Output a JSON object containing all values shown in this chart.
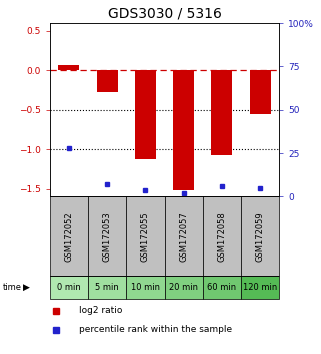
{
  "title": "GDS3030 / 5316",
  "samples": [
    "GSM172052",
    "GSM172053",
    "GSM172055",
    "GSM172057",
    "GSM172058",
    "GSM172059"
  ],
  "time_labels": [
    "0 min",
    "5 min",
    "10 min",
    "20 min",
    "60 min",
    "120 min"
  ],
  "log2_ratio": [
    0.07,
    -0.28,
    -1.12,
    -1.52,
    -1.08,
    -0.55
  ],
  "percentile_rank": [
    28,
    7,
    4,
    2,
    6,
    5
  ],
  "ylim_left": [
    -1.6,
    0.6
  ],
  "ylim_right": [
    0,
    100
  ],
  "bar_color": "#cc0000",
  "dot_color": "#2222cc",
  "dashed_line_color": "#cc0000",
  "dotted_line_color": "#000000",
  "bg_color_gray": "#c0c0c0",
  "bg_color_green_light": "#aaeeaa",
  "bg_color_green_mid": "#88dd88",
  "bg_color_green_dark": "#55cc55",
  "left_tick_color": "#cc0000",
  "right_tick_color": "#2222bb",
  "title_fontsize": 10,
  "tick_fontsize": 6.5,
  "sample_fontsize": 6,
  "time_fontsize": 6,
  "legend_fontsize": 6.5,
  "green_colors": [
    "#b0e8b0",
    "#a0e0a0",
    "#90d890",
    "#80d080",
    "#70c870",
    "#55bb55"
  ]
}
